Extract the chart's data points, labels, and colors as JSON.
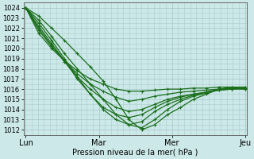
{
  "xlabel": "Pression niveau de la mer( hPa )",
  "ylim": [
    1011.5,
    1024.5
  ],
  "yticks": [
    1012,
    1013,
    1014,
    1015,
    1016,
    1017,
    1018,
    1019,
    1020,
    1021,
    1022,
    1023,
    1024
  ],
  "xtick_labels": [
    "Lun",
    "Mar",
    "Mer",
    "Jeu"
  ],
  "xtick_positions": [
    0.0,
    2.0,
    4.0,
    6.0
  ],
  "bg_color": "#cce8e8",
  "grid_color": "#aacccc",
  "line_color": "#1a6e1a",
  "series": [
    [
      1024.0,
      1023.2,
      1022.0,
      1020.8,
      1019.5,
      1018.2,
      1016.8,
      1015.0,
      1013.0,
      1012.0,
      1012.5,
      1013.5,
      1014.2,
      1015.0,
      1015.5,
      1016.0,
      1016.2,
      1016.0
    ],
    [
      1024.0,
      1022.8,
      1021.2,
      1019.5,
      1018.0,
      1016.5,
      1015.0,
      1013.5,
      1012.5,
      1012.2,
      1013.0,
      1014.0,
      1014.8,
      1015.3,
      1015.6,
      1016.0,
      1016.0,
      1016.0
    ],
    [
      1024.0,
      1022.5,
      1020.8,
      1019.0,
      1017.2,
      1015.5,
      1014.0,
      1013.0,
      1012.5,
      1012.8,
      1013.8,
      1014.5,
      1015.0,
      1015.4,
      1015.7,
      1016.0,
      1016.1,
      1016.0
    ],
    [
      1024.0,
      1022.2,
      1020.5,
      1018.8,
      1017.0,
      1015.5,
      1014.2,
      1013.5,
      1013.2,
      1013.5,
      1014.2,
      1014.8,
      1015.2,
      1015.5,
      1015.7,
      1015.9,
      1016.0,
      1016.1
    ],
    [
      1024.0,
      1022.0,
      1020.3,
      1018.7,
      1017.2,
      1016.0,
      1015.0,
      1014.2,
      1013.8,
      1014.0,
      1014.5,
      1015.0,
      1015.3,
      1015.5,
      1015.7,
      1015.9,
      1016.0,
      1016.1
    ],
    [
      1024.0,
      1021.8,
      1020.2,
      1018.8,
      1017.5,
      1016.5,
      1015.8,
      1015.2,
      1014.8,
      1015.0,
      1015.3,
      1015.5,
      1015.7,
      1015.8,
      1015.9,
      1016.0,
      1016.1,
      1016.2
    ],
    [
      1024.0,
      1021.5,
      1020.0,
      1018.8,
      1017.8,
      1017.0,
      1016.5,
      1016.0,
      1015.8,
      1015.8,
      1015.9,
      1016.0,
      1016.0,
      1016.1,
      1016.1,
      1016.2,
      1016.2,
      1016.2
    ]
  ]
}
